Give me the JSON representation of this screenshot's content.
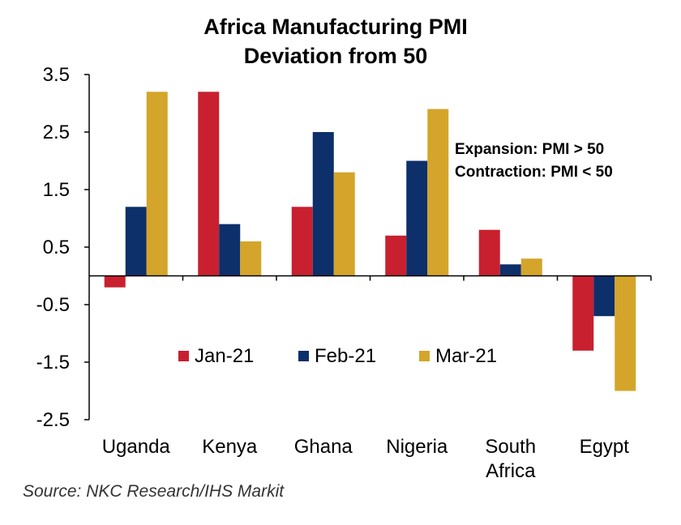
{
  "chart_data": {
    "type": "bar",
    "title": "Africa Manufacturing PMI",
    "subtitle": "Deviation from 50",
    "categories": [
      [
        "Uganda"
      ],
      [
        "Kenya"
      ],
      [
        "Ghana"
      ],
      [
        "Nigeria"
      ],
      [
        "South",
        "Africa"
      ],
      [
        "Egypt"
      ]
    ],
    "series": [
      {
        "name": "Jan-21",
        "color": "#C8202F",
        "values": [
          -0.2,
          3.2,
          1.2,
          0.7,
          0.8,
          -1.3
        ]
      },
      {
        "name": "Feb-21",
        "color": "#0D2F6A",
        "values": [
          1.2,
          0.9,
          2.5,
          2.0,
          0.2,
          -0.7
        ]
      },
      {
        "name": "Mar-21",
        "color": "#D4A52A",
        "values": [
          3.2,
          0.6,
          1.8,
          2.9,
          0.3,
          -2.0
        ]
      }
    ],
    "yticks": [
      "3.5",
      "2.5",
      "1.5",
      "0.5",
      "-0.5",
      "-1.5",
      "-2.5"
    ],
    "ylim": [
      -2.5,
      3.5
    ],
    "xlabel": "",
    "ylabel": "",
    "grid": false,
    "legend_position": "center",
    "annotations": [
      "Expansion:  PMI > 50",
      "Contraction:  PMI < 50"
    ],
    "source": "Source: NKC Research/IHS Markit"
  }
}
